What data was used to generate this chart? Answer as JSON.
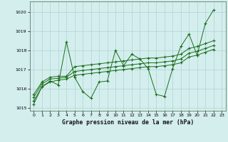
{
  "xlabel": "Graphe pression niveau de la mer (hPa)",
  "background_color": "#d4eeee",
  "grid_color": "#aed4d4",
  "line_color": "#1a6e1a",
  "ylim": [
    1014.85,
    1020.55
  ],
  "yticks": [
    1015,
    1016,
    1017,
    1018,
    1019,
    1020
  ],
  "xlim": [
    -0.5,
    23.5
  ],
  "xticks": [
    0,
    1,
    2,
    3,
    4,
    5,
    6,
    7,
    8,
    9,
    10,
    11,
    12,
    13,
    14,
    15,
    16,
    17,
    18,
    19,
    20,
    21,
    22,
    23
  ],
  "series": [
    [
      1015.2,
      1016.1,
      1016.4,
      1016.2,
      1018.45,
      1016.6,
      1015.85,
      1015.5,
      1016.35,
      1016.4,
      1018.0,
      1017.2,
      1017.8,
      1017.55,
      1017.05,
      1015.7,
      1015.6,
      1017.05,
      1018.2,
      1018.85,
      1017.75,
      1019.4,
      1020.1
    ],
    [
      1015.7,
      1016.35,
      1016.6,
      1016.65,
      1016.65,
      1017.15,
      1017.2,
      1017.25,
      1017.3,
      1017.35,
      1017.4,
      1017.45,
      1017.5,
      1017.55,
      1017.6,
      1017.6,
      1017.65,
      1017.7,
      1017.8,
      1018.1,
      1018.2,
      1018.35,
      1018.5
    ],
    [
      1015.55,
      1016.25,
      1016.5,
      1016.55,
      1016.6,
      1016.9,
      1016.95,
      1017.0,
      1017.05,
      1017.1,
      1017.15,
      1017.2,
      1017.25,
      1017.3,
      1017.35,
      1017.35,
      1017.4,
      1017.45,
      1017.55,
      1017.85,
      1017.95,
      1018.1,
      1018.25
    ],
    [
      1015.35,
      1016.1,
      1016.35,
      1016.45,
      1016.5,
      1016.7,
      1016.75,
      1016.8,
      1016.85,
      1016.9,
      1016.95,
      1017.0,
      1017.05,
      1017.1,
      1017.15,
      1017.15,
      1017.2,
      1017.25,
      1017.35,
      1017.65,
      1017.75,
      1017.9,
      1018.05
    ]
  ]
}
